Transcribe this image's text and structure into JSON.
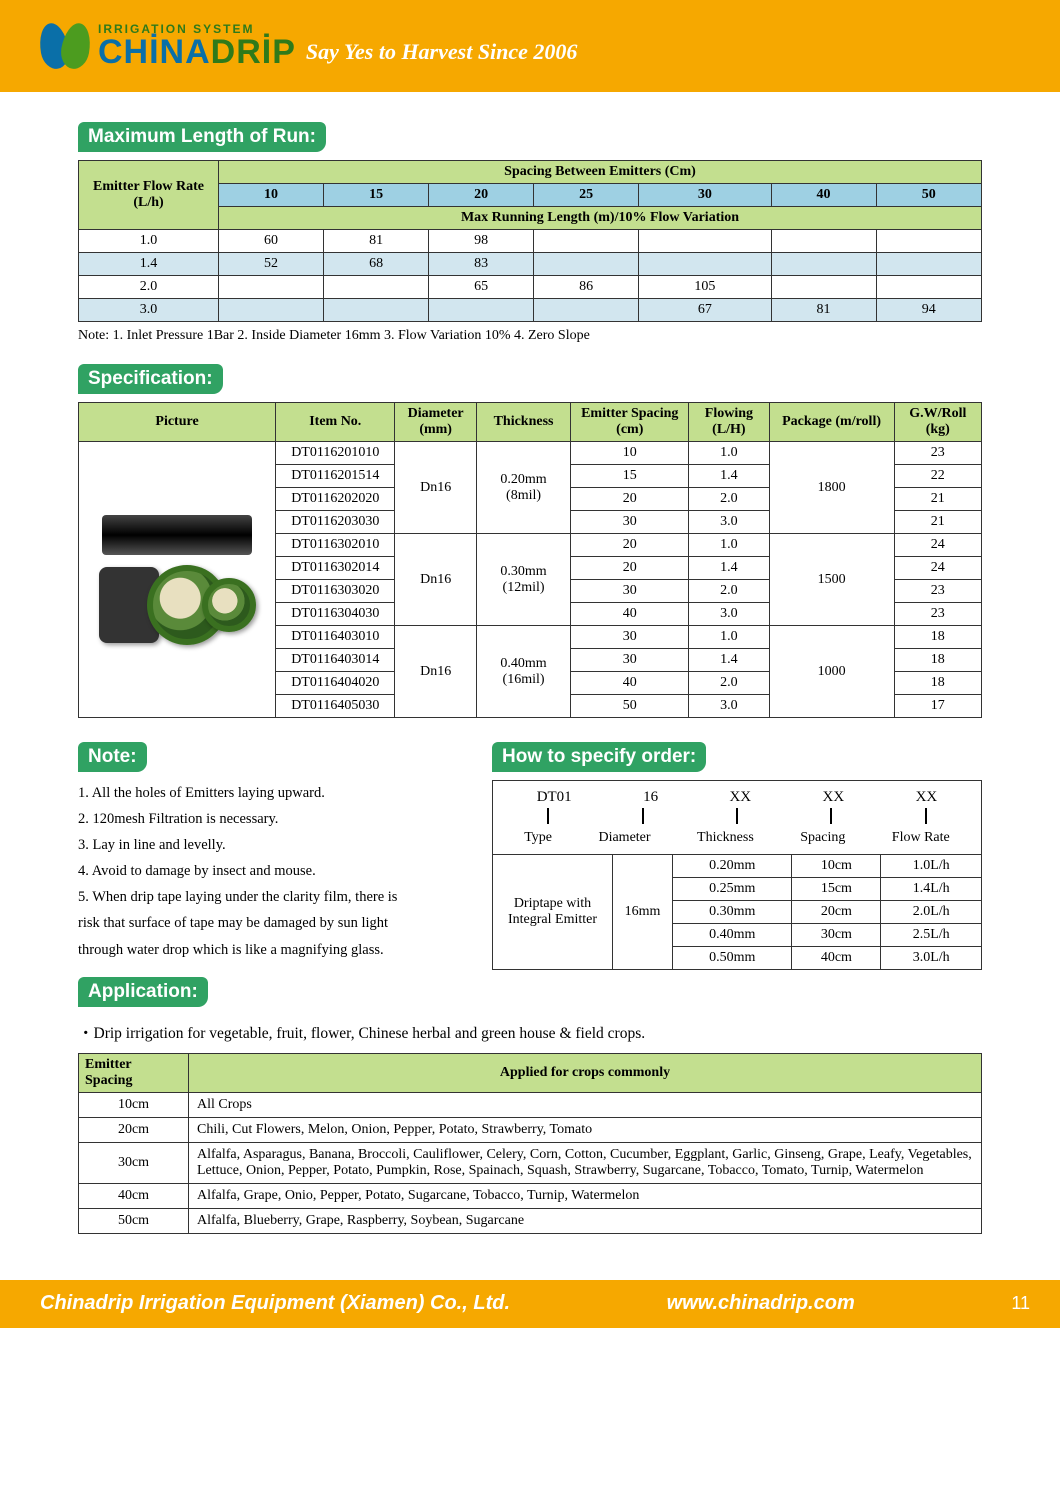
{
  "header": {
    "irrigation_system": "IRRIGATION SYSTEM",
    "brand_a": "CHİNA",
    "brand_b": "DRİP",
    "tagline": "Say Yes to Harvest Since 2006"
  },
  "section1": {
    "title": "Maximum Length of Run:",
    "emitter_flow_rate_label": "Emitter Flow Rate\n(L/h)",
    "spacing_header": "Spacing Between Emitters (Cm)",
    "running_header": "Max Running Length (m)/10% Flow Variation",
    "spacings": [
      "10",
      "15",
      "20",
      "25",
      "30",
      "40",
      "50"
    ],
    "rows": [
      {
        "rate": "1.0",
        "vals": [
          "60",
          "81",
          "98",
          "",
          "",
          "",
          ""
        ],
        "alt": false
      },
      {
        "rate": "1.4",
        "vals": [
          "52",
          "68",
          "83",
          "",
          "",
          "",
          ""
        ],
        "alt": true
      },
      {
        "rate": "2.0",
        "vals": [
          "",
          "",
          "65",
          "86",
          "105",
          "",
          ""
        ],
        "alt": false
      },
      {
        "rate": "3.0",
        "vals": [
          "",
          "",
          "",
          "",
          "67",
          "81",
          "94"
        ],
        "alt": true
      }
    ],
    "note": "Note: 1. Inlet Pressure 1Bar  2. Inside Diameter 16mm  3. Flow Variation 10%  4. Zero Slope"
  },
  "section2": {
    "title": "Specification:",
    "headers": [
      "Picture",
      "Item No.",
      "Diameter\n(mm)",
      "Thickness",
      "Emitter Spacing\n(cm)",
      "Flowing\n(L/H)",
      "Package (m/roll)",
      "G.W/Roll\n(kg)"
    ],
    "groups": [
      {
        "diameter": "Dn16",
        "thickness": "0.20mm\n(8mil)",
        "package": "1800",
        "rows": [
          {
            "item": "DT0116201010",
            "spacing": "10",
            "flow": "1.0",
            "gw": "23"
          },
          {
            "item": "DT0116201514",
            "spacing": "15",
            "flow": "1.4",
            "gw": "22"
          },
          {
            "item": "DT0116202020",
            "spacing": "20",
            "flow": "2.0",
            "gw": "21"
          },
          {
            "item": "DT0116203030",
            "spacing": "30",
            "flow": "3.0",
            "gw": "21"
          }
        ]
      },
      {
        "diameter": "Dn16",
        "thickness": "0.30mm\n(12mil)",
        "package": "1500",
        "rows": [
          {
            "item": "DT0116302010",
            "spacing": "20",
            "flow": "1.0",
            "gw": "24"
          },
          {
            "item": "DT0116302014",
            "spacing": "20",
            "flow": "1.4",
            "gw": "24"
          },
          {
            "item": "DT0116303020",
            "spacing": "30",
            "flow": "2.0",
            "gw": "23"
          },
          {
            "item": "DT0116304030",
            "spacing": "40",
            "flow": "3.0",
            "gw": "23"
          }
        ]
      },
      {
        "diameter": "Dn16",
        "thickness": "0.40mm\n(16mil)",
        "package": "1000",
        "rows": [
          {
            "item": "DT0116403010",
            "spacing": "30",
            "flow": "1.0",
            "gw": "18"
          },
          {
            "item": "DT0116403014",
            "spacing": "30",
            "flow": "1.4",
            "gw": "18"
          },
          {
            "item": "DT0116404020",
            "spacing": "40",
            "flow": "2.0",
            "gw": "18"
          },
          {
            "item": "DT0116405030",
            "spacing": "50",
            "flow": "3.0",
            "gw": "17"
          }
        ]
      }
    ]
  },
  "section_note": {
    "title": "Note:",
    "items": [
      "1. All the holes of Emitters laying upward.",
      "2. 120mesh Filtration is necessary.",
      "3. Lay in line and levelly.",
      "4. Avoid to damage by insect and mouse.",
      "5. When drip tape laying under the clarity film, there is",
      "    risk that surface of tape may be damaged by sun light",
      "    through water drop which is like a magnifying glass."
    ]
  },
  "section_order": {
    "title": "How to specify order:",
    "codes": [
      "DT01",
      "16",
      "XX",
      "XX",
      "XX"
    ],
    "labels": [
      "Type",
      "Diameter",
      "Thickness",
      "Spacing",
      "Flow Rate"
    ],
    "table": {
      "type": "Driptape with\nIntegral Emitter",
      "diameter": "16mm",
      "thickness": [
        "0.20mm",
        "0.25mm",
        "0.30mm",
        "0.40mm",
        "0.50mm"
      ],
      "spacing": [
        "10cm",
        "15cm",
        "20cm",
        "30cm",
        "40cm"
      ],
      "flow": [
        "1.0L/h",
        "1.4L/h",
        "2.0L/h",
        "2.5L/h",
        "3.0L/h"
      ]
    }
  },
  "section_app": {
    "title": "Application:",
    "line": "・Drip irrigation for vegetable, fruit, flower, Chinese herbal and green house & field crops.",
    "header1": "Emitter Spacing",
    "header2": "Applied for crops commonly",
    "rows": [
      {
        "sp": "10cm",
        "crops": "All Crops"
      },
      {
        "sp": "20cm",
        "crops": "Chili, Cut Flowers, Melon, Onion, Pepper, Potato, Strawberry, Tomato"
      },
      {
        "sp": "30cm",
        "crops": "Alfalfa, Asparagus, Banana, Broccoli, Cauliflower, Celery, Corn, Cotton, Cucumber, Eggplant, Garlic, Ginseng, Grape, Leafy, Vegetables, Lettuce, Onion, Pepper, Potato, Pumpkin, Rose, Spainach, Squash, Strawberry, Sugarcane, Tobacco, Tomato, Turnip, Watermelon"
      },
      {
        "sp": "40cm",
        "crops": "Alfalfa, Grape, Onio, Pepper, Potato, Sugarcane, Tobacco, Turnip, Watermelon"
      },
      {
        "sp": "50cm",
        "crops": "Alfalfa, Blueberry, Grape, Raspberry, Soybean, Sugarcane"
      }
    ]
  },
  "footer": {
    "company": "Chinadrip Irrigation Equipment (Xiamen) Co., Ltd.",
    "website": "www.chinadrip.com",
    "page": "11"
  }
}
